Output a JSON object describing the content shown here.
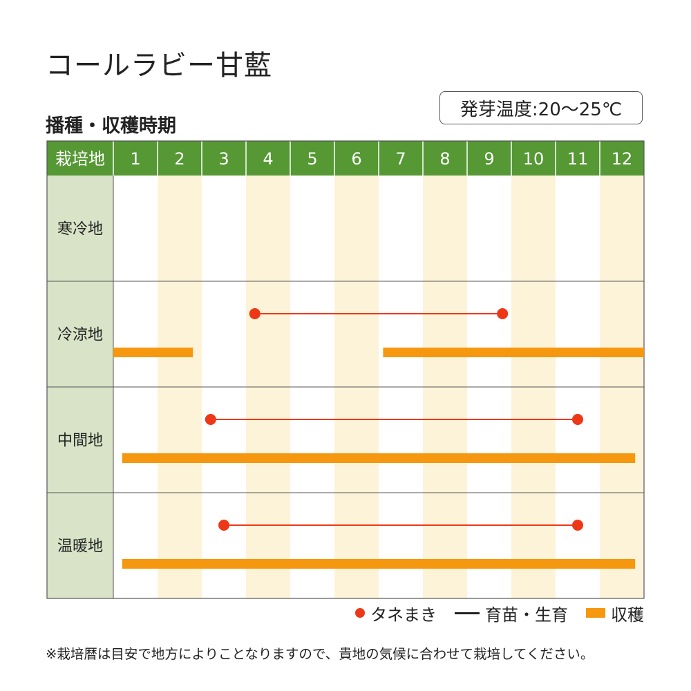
{
  "title": "コールラビー甘藍",
  "subtitle": "播種・収穫時期",
  "germination_temp": "発芽温度:20〜25℃",
  "note": "※栽培暦は目安で地方によりことなりますので、貴地の気候に合わせて栽培してください。",
  "legend": {
    "sowing": "タネまき",
    "growing": "育苗・生育",
    "harvest": "収穫"
  },
  "colors": {
    "header_bg": "#559834",
    "region_bg": "#d8e3c7",
    "alt_month_bg": "#fdf3d9",
    "sowing": "#ee3717",
    "growing_line": "#ee3717",
    "harvest": "#f6980f",
    "grid": "#555555"
  },
  "chart_data": {
    "type": "table",
    "header_label": "栽培地",
    "months": [
      "1",
      "2",
      "3",
      "4",
      "5",
      "6",
      "7",
      "8",
      "9",
      "10",
      "11",
      "12"
    ],
    "x_unit": "month",
    "rows": [
      {
        "region": "寒冷地",
        "sowing": [],
        "harvest": []
      },
      {
        "region": "冷涼地",
        "sowing": [
          {
            "start": 4.2,
            "end": 9.8
          }
        ],
        "harvest": [
          {
            "start": 1.0,
            "end": 2.8
          },
          {
            "start": 7.1,
            "end": 13.0
          }
        ]
      },
      {
        "region": "中間地",
        "sowing": [
          {
            "start": 3.2,
            "end": 11.5
          }
        ],
        "harvest": [
          {
            "start": 1.2,
            "end": 12.8
          }
        ]
      },
      {
        "region": "温暖地",
        "sowing": [
          {
            "start": 3.5,
            "end": 11.5
          }
        ],
        "harvest": [
          {
            "start": 1.2,
            "end": 12.8
          }
        ]
      }
    ]
  }
}
